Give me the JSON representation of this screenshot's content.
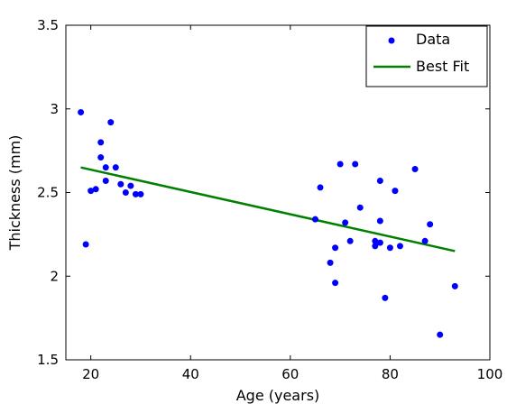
{
  "chart_data": {
    "type": "scatter",
    "title": "",
    "xlabel": "Age (years)",
    "ylabel": "Thickness (mm)",
    "xlim": [
      15,
      100
    ],
    "ylim": [
      1.5,
      3.5
    ],
    "xticks": [
      20,
      40,
      60,
      80,
      100
    ],
    "yticks": [
      1.5,
      2,
      2.5,
      3,
      3.5
    ],
    "xtick_labels": [
      "20",
      "40",
      "60",
      "80",
      "100"
    ],
    "ytick_labels": [
      "1.5",
      "2",
      "2.5",
      "3",
      "3.5"
    ],
    "grid": false,
    "legend_position": "top-right",
    "series": [
      {
        "name": "Data",
        "kind": "scatter",
        "color": "#0000ff",
        "points": [
          [
            18,
            2.98
          ],
          [
            19,
            2.19
          ],
          [
            20,
            2.51
          ],
          [
            21,
            2.52
          ],
          [
            22,
            2.8
          ],
          [
            22,
            2.71
          ],
          [
            23,
            2.65
          ],
          [
            23,
            2.57
          ],
          [
            24,
            2.92
          ],
          [
            25,
            2.65
          ],
          [
            26,
            2.55
          ],
          [
            27,
            2.5
          ],
          [
            28,
            2.54
          ],
          [
            29,
            2.49
          ],
          [
            30,
            2.49
          ],
          [
            65,
            2.34
          ],
          [
            66,
            2.53
          ],
          [
            68,
            2.08
          ],
          [
            69,
            2.17
          ],
          [
            69,
            1.96
          ],
          [
            70,
            2.67
          ],
          [
            71,
            2.32
          ],
          [
            72,
            2.21
          ],
          [
            73,
            2.67
          ],
          [
            74,
            2.41
          ],
          [
            77,
            2.21
          ],
          [
            77,
            2.18
          ],
          [
            78,
            2.57
          ],
          [
            78,
            2.33
          ],
          [
            78,
            2.2
          ],
          [
            79,
            1.87
          ],
          [
            80,
            2.17
          ],
          [
            81,
            2.51
          ],
          [
            82,
            2.18
          ],
          [
            85,
            2.64
          ],
          [
            87,
            2.21
          ],
          [
            88,
            2.31
          ],
          [
            90,
            1.65
          ],
          [
            93,
            1.94
          ]
        ]
      },
      {
        "name": "Best Fit",
        "kind": "line",
        "color": "#008000",
        "points": [
          [
            18,
            2.65
          ],
          [
            93,
            2.15
          ]
        ]
      }
    ]
  }
}
